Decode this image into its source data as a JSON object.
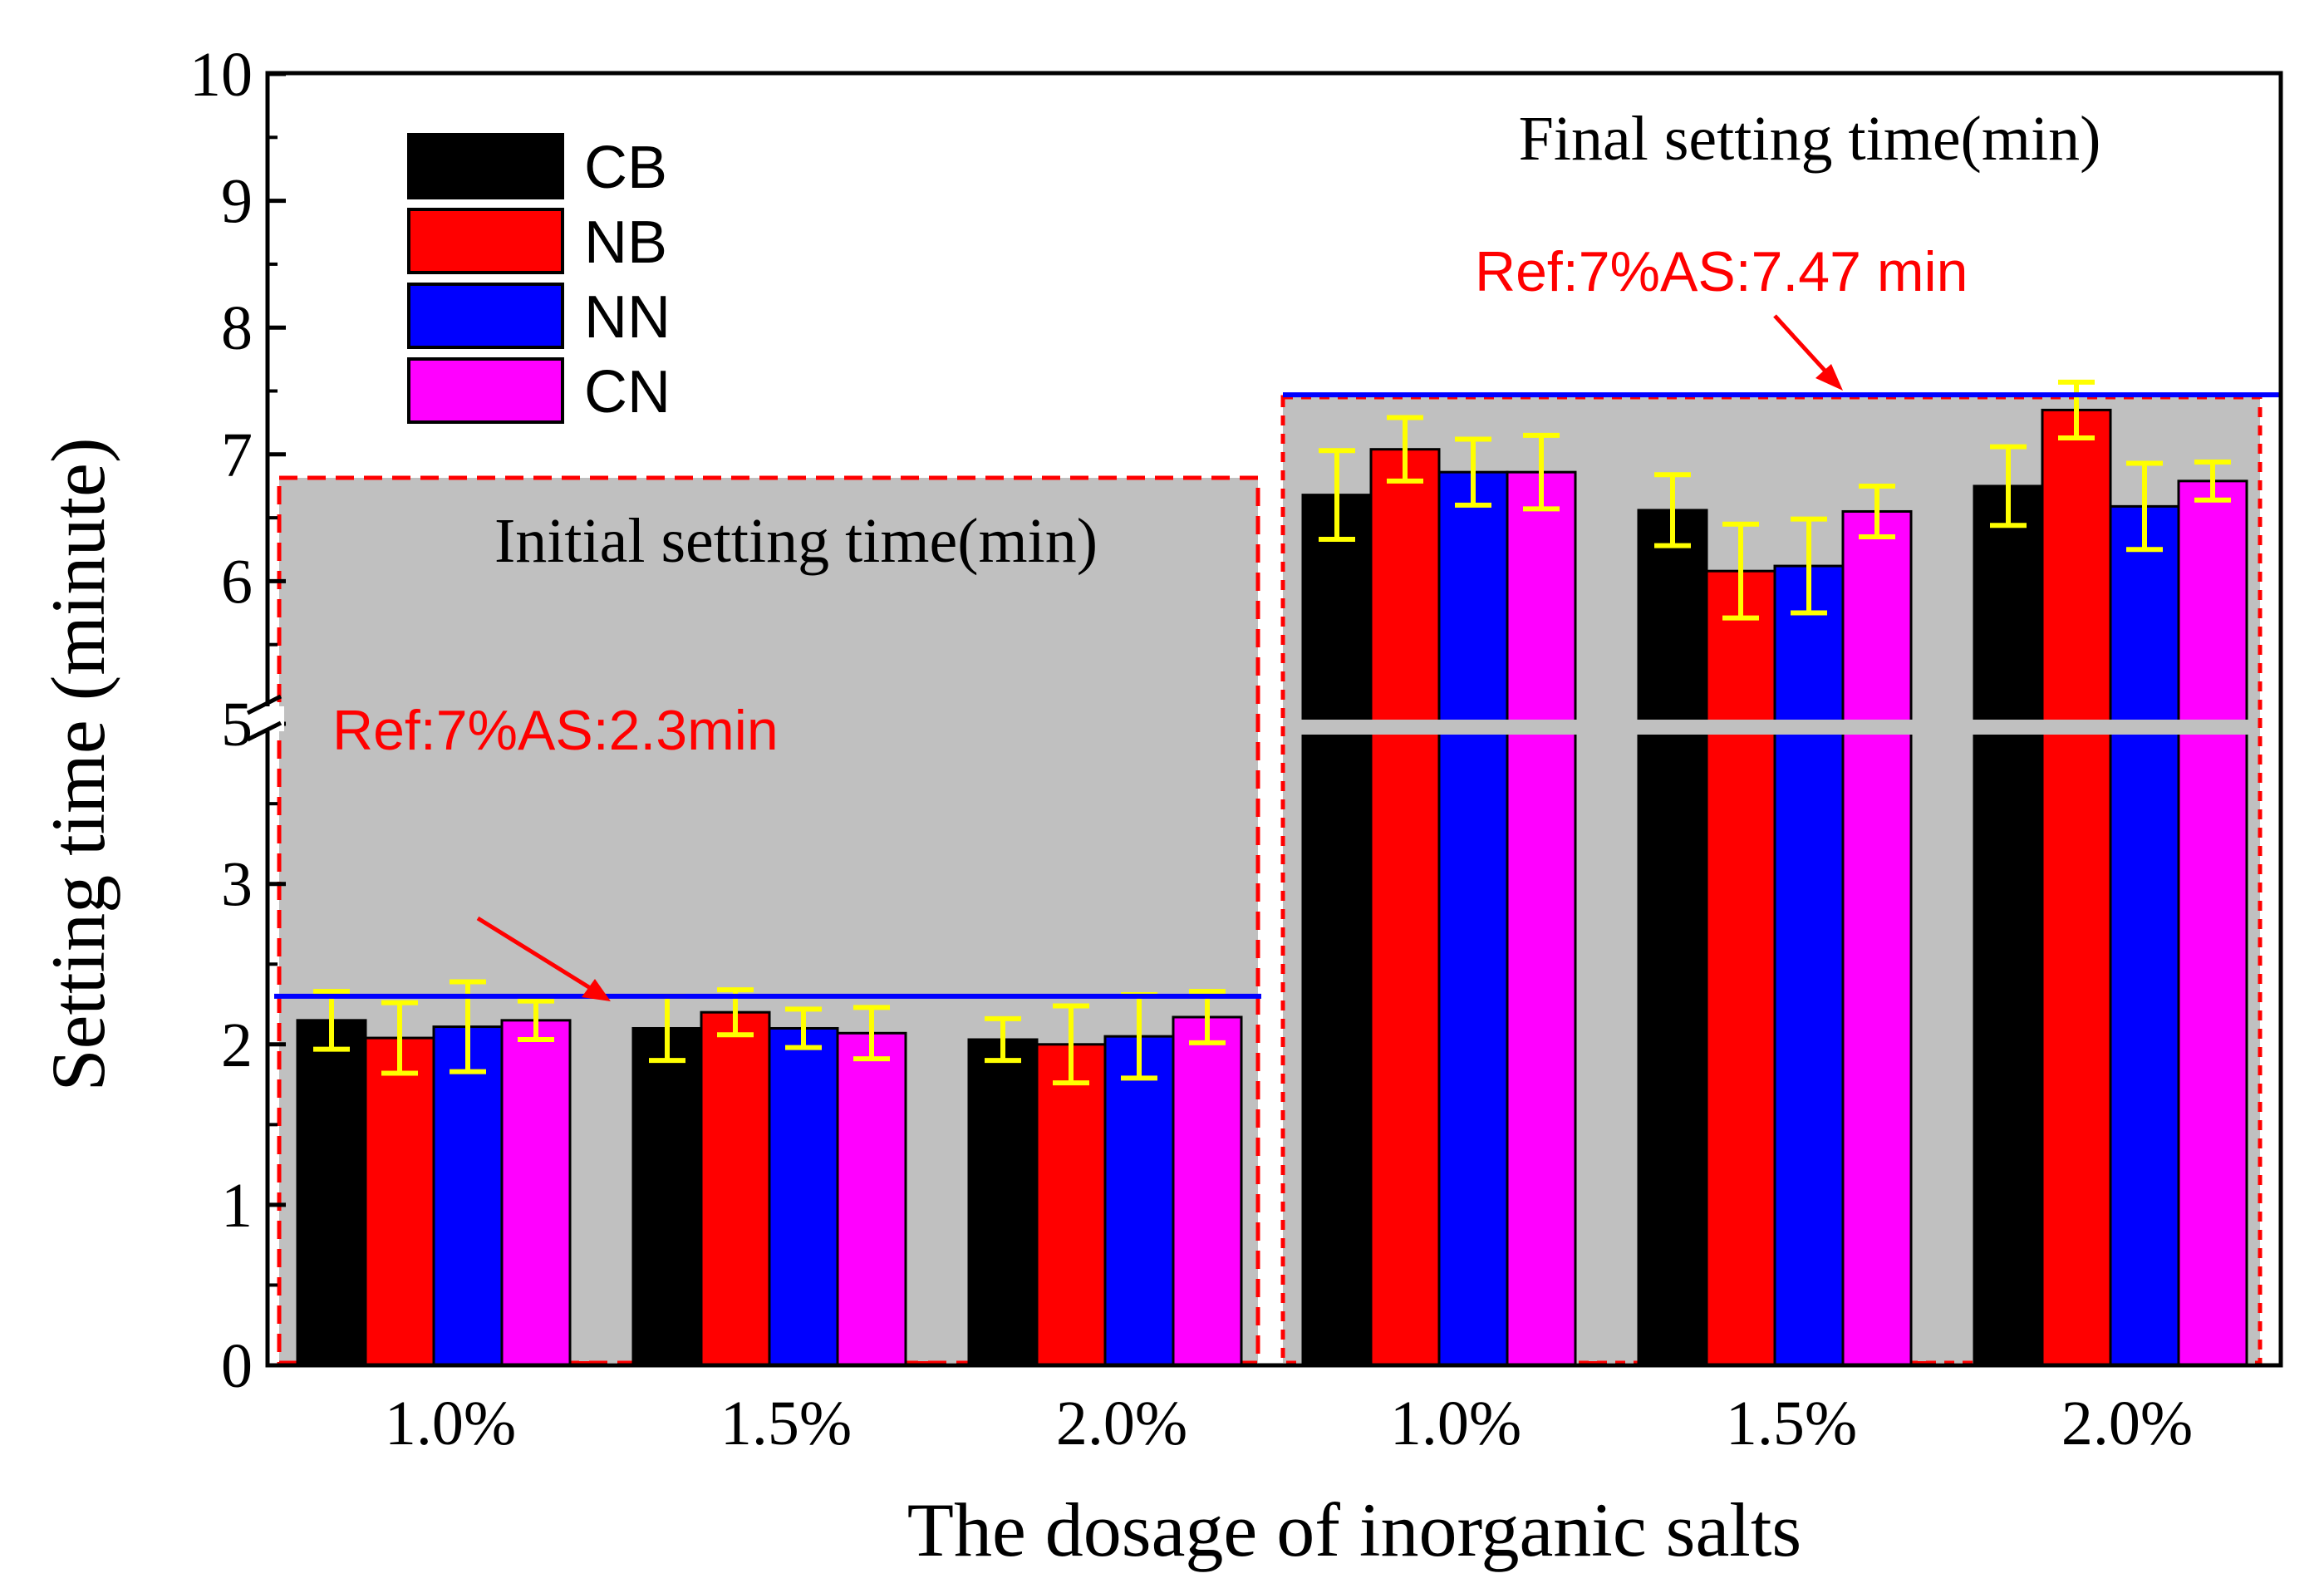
{
  "chart_data": {
    "type": "bar",
    "xlabel": "The dosage of inorganic salts",
    "ylabel": "Setting time (minute)",
    "ylim": [
      0,
      10
    ],
    "axis_break": [
      3.95,
      5
    ],
    "y_ticks": [
      "0",
      "1",
      "2",
      "3",
      "5",
      "6",
      "7",
      "8",
      "9",
      "10"
    ],
    "y_tick_values": [
      0,
      1,
      2,
      3,
      5,
      6,
      7,
      8,
      9,
      10
    ],
    "categories": [
      "1.0%",
      "1.5%",
      "2.0%",
      "1.0%",
      "1.5%",
      "2.0%"
    ],
    "groups": [
      {
        "title": "Initial setting time(min)",
        "category_indices": [
          0,
          1,
          2
        ]
      },
      {
        "title": "Final setting time(min)",
        "category_indices": [
          3,
          4,
          5
        ]
      }
    ],
    "series": [
      {
        "name": "CB",
        "color": "#000000",
        "values": [
          2.15,
          2.1,
          2.03,
          6.68,
          6.56,
          6.75
        ],
        "errors": [
          0.18,
          0.2,
          0.13,
          0.35,
          0.28,
          0.31
        ]
      },
      {
        "name": "NB",
        "color": "#ff0000",
        "values": [
          2.04,
          2.2,
          2.0,
          7.04,
          6.08,
          7.35
        ],
        "errors": [
          0.22,
          0.14,
          0.24,
          0.25,
          0.37,
          0.22
        ]
      },
      {
        "name": "NN",
        "color": "#0000ff",
        "values": [
          2.11,
          2.1,
          2.05,
          6.86,
          6.12,
          6.59
        ],
        "errors": [
          0.28,
          0.12,
          0.26,
          0.26,
          0.37,
          0.34
        ]
      },
      {
        "name": "CN",
        "color": "#ff00ff",
        "values": [
          2.15,
          2.07,
          2.17,
          6.86,
          6.55,
          6.79
        ],
        "errors": [
          0.12,
          0.16,
          0.16,
          0.29,
          0.2,
          0.15
        ]
      }
    ],
    "reference_lines": [
      {
        "label": "Ref:7%AS:2.3min",
        "value": 2.3,
        "group": 0,
        "color": "#0000ff"
      },
      {
        "label": "Ref:7%AS:7.47 min",
        "value": 7.47,
        "group": 1,
        "color": "#0000ff"
      }
    ],
    "errorbar_color": "#ffff00",
    "highlight_fill": "#c0c0c0",
    "highlight_border": "#ff0000",
    "legend_position": "top-left"
  }
}
